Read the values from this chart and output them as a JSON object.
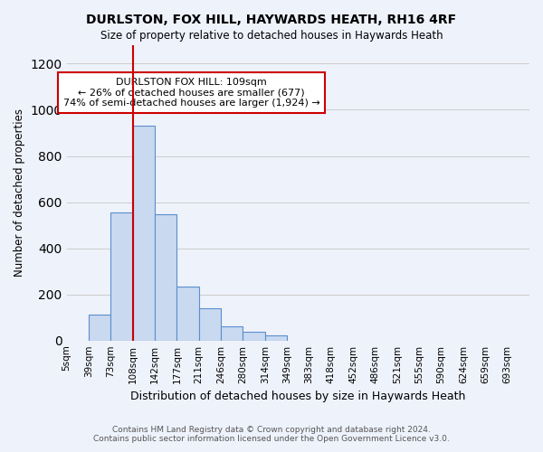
{
  "title": "DURLSTON, FOX HILL, HAYWARDS HEATH, RH16 4RF",
  "subtitle": "Size of property relative to detached houses in Haywards Heath",
  "xlabel": "Distribution of detached houses by size in Haywards Heath",
  "ylabel": "Number of detached properties",
  "footer_line1": "Contains HM Land Registry data © Crown copyright and database right 2024.",
  "footer_line2": "Contains public sector information licensed under the Open Government Licence v3.0.",
  "bin_labels": [
    "5sqm",
    "39sqm",
    "73sqm",
    "108sqm",
    "142sqm",
    "177sqm",
    "211sqm",
    "246sqm",
    "280sqm",
    "314sqm",
    "349sqm",
    "383sqm",
    "418sqm",
    "452sqm",
    "486sqm",
    "521sqm",
    "555sqm",
    "590sqm",
    "624sqm",
    "659sqm",
    "693sqm"
  ],
  "bar_values": [
    0,
    113,
    557,
    930,
    548,
    233,
    140,
    62,
    38,
    22,
    0,
    0,
    0,
    0,
    0,
    0,
    0,
    0,
    0,
    0,
    0
  ],
  "bar_color": "#c9d9f0",
  "bar_edge_color": "#5b8fcc",
  "property_bin_index": 3,
  "annotation_title": "DURLSTON FOX HILL: 109sqm",
  "annotation_line1": "← 26% of detached houses are smaller (677)",
  "annotation_line2": "74% of semi-detached houses are larger (1,924) →",
  "annotation_box_color": "#ffffff",
  "annotation_box_edge_color": "#cc0000",
  "ylim": [
    0,
    1280
  ],
  "background_color": "#eef2fb",
  "plot_background_color": "#eef2fb",
  "grid_color": "#cccccc",
  "bin_width": 34
}
